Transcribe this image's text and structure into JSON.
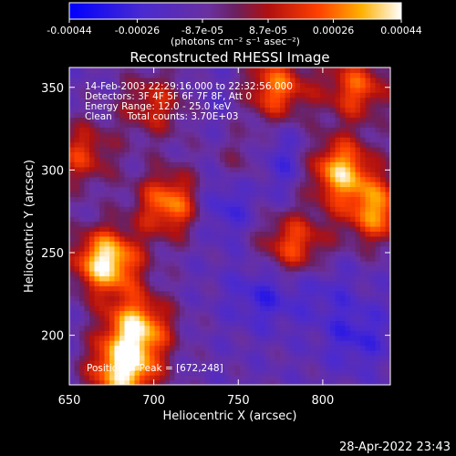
{
  "colorbar": {
    "colormap": "blue-purple-red-yellow-white",
    "tick_labels": [
      "-0.00044",
      "-0.00026",
      "-8.7e-05",
      "8.7e-05",
      "0.00026",
      "0.00044"
    ],
    "tick_values": [
      -0.00044,
      -0.00026,
      -8.7e-05,
      8.7e-05,
      0.00026,
      0.00044
    ],
    "range": [
      -0.00044,
      0.00044
    ],
    "units_label": "(photons cm⁻² s⁻¹ asec⁻²)"
  },
  "chart_data": {
    "type": "heatmap",
    "title": "Reconstructed RHESSI Image",
    "xlabel": "Heliocentric X (arcsec)",
    "ylabel": "Heliocentric Y (arcsec)",
    "xlim": [
      650,
      840
    ],
    "ylim": [
      170,
      362
    ],
    "xticks": [
      650,
      700,
      750,
      800
    ],
    "yticks": [
      200,
      250,
      300,
      350
    ],
    "annotations": [
      "14-Feb-2003 22:29:16.000 to 22:32:56.000",
      "Detectors: 3F 4F 5F 6F 7F 8F, Att 0",
      "Energy Range: 12.0 - 25.0 keV",
      "Clean     Total counts: 3.70E+03"
    ],
    "peak_label": "Position of Peak = [672,248]",
    "peak": [
      672,
      248
    ],
    "bright_regions": [
      {
        "x": 672,
        "y": 245,
        "value": 0.00044
      },
      {
        "x": 690,
        "y": 205,
        "value": 0.00036
      },
      {
        "x": 682,
        "y": 178,
        "value": 0.0004
      },
      {
        "x": 710,
        "y": 280,
        "value": 0.0003
      },
      {
        "x": 783,
        "y": 255,
        "value": 0.00022
      },
      {
        "x": 810,
        "y": 300,
        "value": 0.00034
      },
      {
        "x": 832,
        "y": 275,
        "value": 0.00028
      },
      {
        "x": 772,
        "y": 350,
        "value": 0.00026
      },
      {
        "x": 820,
        "y": 350,
        "value": 0.00022
      },
      {
        "x": 760,
        "y": 305,
        "value": 0.00018
      },
      {
        "x": 657,
        "y": 310,
        "value": 0.00016
      },
      {
        "x": 700,
        "y": 340,
        "value": 0.00014
      }
    ],
    "dark_regions": [
      {
        "x": 770,
        "y": 305,
        "value": -0.00044
      },
      {
        "x": 740,
        "y": 280,
        "value": -0.0003
      },
      {
        "x": 765,
        "y": 225,
        "value": -0.00028
      },
      {
        "x": 800,
        "y": 230,
        "value": -0.00022
      },
      {
        "x": 820,
        "y": 200,
        "value": -0.00028
      },
      {
        "x": 740,
        "y": 345,
        "value": -0.00018
      }
    ]
  },
  "footer": {
    "timestamp": "28-Apr-2022 23:43"
  }
}
